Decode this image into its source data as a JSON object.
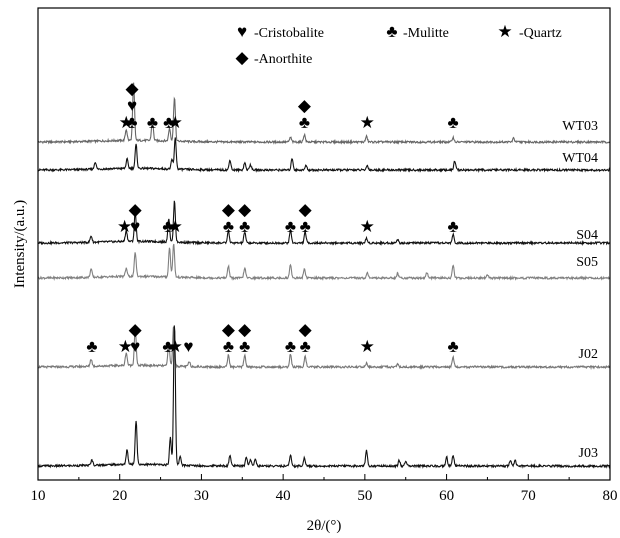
{
  "chart_data": {
    "type": "line",
    "xlabel": "2θ/(°)",
    "ylabel": "Intensity/(a.u.)",
    "xlim": [
      10,
      80
    ],
    "xticks": [
      "10",
      "20",
      "30",
      "40",
      "50",
      "60",
      "70",
      "80"
    ],
    "yticks_shown": false,
    "legend": [
      {
        "symbol": "♥",
        "icon": "heart-icon",
        "label": "-Cristobalite"
      },
      {
        "symbol": "♣",
        "icon": "club-icon",
        "label": "-Mulitte"
      },
      {
        "symbol": "★",
        "icon": "star-icon",
        "label": "-Quartz"
      },
      {
        "symbol": "◆",
        "icon": "diamond-icon",
        "label": "-Anorthite"
      }
    ],
    "series": [
      {
        "name": "WT03",
        "color": "#666666",
        "peaks": [
          [
            20.8,
            0.12
          ],
          [
            21.7,
            0.62
          ],
          [
            24.0,
            0.22
          ],
          [
            26.1,
            0.14
          ],
          [
            26.7,
            0.48
          ],
          [
            40.9,
            0.05
          ],
          [
            42.6,
            0.08
          ],
          [
            50.2,
            0.06
          ],
          [
            60.8,
            0.05
          ],
          [
            68.2,
            0.04
          ]
        ]
      },
      {
        "name": "WT04",
        "color": "#111111",
        "peaks": [
          [
            17.0,
            0.08
          ],
          [
            20.9,
            0.1
          ],
          [
            22.0,
            0.26
          ],
          [
            26.4,
            0.1
          ],
          [
            26.8,
            0.34
          ],
          [
            33.5,
            0.11
          ],
          [
            35.3,
            0.08
          ],
          [
            36.0,
            0.06
          ],
          [
            41.1,
            0.13
          ],
          [
            42.8,
            0.05
          ],
          [
            50.3,
            0.05
          ],
          [
            61.0,
            0.1
          ]
        ]
      },
      {
        "name": "S04",
        "color": "#111111",
        "peaks": [
          [
            16.5,
            0.07
          ],
          [
            20.8,
            0.12
          ],
          [
            21.9,
            0.32
          ],
          [
            26.0,
            0.26
          ],
          [
            26.7,
            0.45
          ],
          [
            33.3,
            0.13
          ],
          [
            35.3,
            0.12
          ],
          [
            40.9,
            0.14
          ],
          [
            42.7,
            0.12
          ],
          [
            50.2,
            0.05
          ],
          [
            54.0,
            0.04
          ],
          [
            60.8,
            0.09
          ]
        ]
      },
      {
        "name": "S05",
        "color": "#808080",
        "peaks": [
          [
            16.5,
            0.09
          ],
          [
            20.8,
            0.09
          ],
          [
            21.9,
            0.26
          ],
          [
            26.1,
            0.32
          ],
          [
            26.6,
            0.36
          ],
          [
            33.3,
            0.13
          ],
          [
            35.3,
            0.11
          ],
          [
            40.9,
            0.15
          ],
          [
            42.6,
            0.1
          ],
          [
            50.3,
            0.06
          ],
          [
            54.0,
            0.05
          ],
          [
            57.6,
            0.06
          ],
          [
            60.8,
            0.14
          ],
          [
            65.0,
            0.04
          ]
        ]
      },
      {
        "name": "J02",
        "color": "#777777",
        "peaks": [
          [
            16.5,
            0.08
          ],
          [
            20.8,
            0.14
          ],
          [
            21.9,
            0.4
          ],
          [
            26.0,
            0.24
          ],
          [
            26.6,
            0.44
          ],
          [
            28.5,
            0.05
          ],
          [
            33.3,
            0.13
          ],
          [
            35.3,
            0.13
          ],
          [
            40.9,
            0.14
          ],
          [
            42.7,
            0.12
          ],
          [
            50.2,
            0.04
          ],
          [
            54.0,
            0.03
          ],
          [
            60.8,
            0.11
          ]
        ]
      },
      {
        "name": "J03",
        "color": "#111111",
        "peaks": [
          [
            16.6,
            0.06
          ],
          [
            20.9,
            0.16
          ],
          [
            22.0,
            0.48
          ],
          [
            26.2,
            0.3
          ],
          [
            26.7,
            1.55
          ],
          [
            27.4,
            0.1
          ],
          [
            33.5,
            0.12
          ],
          [
            35.5,
            0.1
          ],
          [
            36.0,
            0.07
          ],
          [
            36.6,
            0.08
          ],
          [
            40.9,
            0.12
          ],
          [
            42.6,
            0.09
          ],
          [
            50.2,
            0.17
          ],
          [
            54.2,
            0.06
          ],
          [
            55.0,
            0.05
          ],
          [
            60.0,
            0.1
          ],
          [
            60.8,
            0.12
          ],
          [
            67.8,
            0.06
          ],
          [
            68.4,
            0.06
          ]
        ]
      }
    ],
    "markers": [
      {
        "series": "WT03",
        "x": 21.5,
        "stack": [
          "♣",
          "♥",
          "◆"
        ]
      },
      {
        "series": "WT03",
        "x": 20.8,
        "stack": [
          "★"
        ]
      },
      {
        "series": "WT03",
        "x": 24.0,
        "stack": [
          "♣"
        ]
      },
      {
        "series": "WT03",
        "x": 26.0,
        "stack": [
          "♣"
        ]
      },
      {
        "series": "WT03",
        "x": 26.8,
        "stack": [
          "★"
        ]
      },
      {
        "series": "WT03",
        "x": 42.6,
        "stack": [
          "♣",
          "◆"
        ]
      },
      {
        "series": "WT03",
        "x": 50.3,
        "stack": [
          "★"
        ]
      },
      {
        "series": "WT03",
        "x": 60.8,
        "stack": [
          "♣"
        ]
      },
      {
        "series": "S04",
        "x": 21.9,
        "stack": [
          "♥",
          "◆"
        ]
      },
      {
        "series": "S04",
        "x": 20.6,
        "stack": [
          "★"
        ]
      },
      {
        "series": "S04",
        "x": 25.9,
        "stack": [
          "♣"
        ]
      },
      {
        "series": "S04",
        "x": 26.8,
        "stack": [
          "★"
        ]
      },
      {
        "series": "S04",
        "x": 33.3,
        "stack": [
          "♣",
          "◆"
        ]
      },
      {
        "series": "S04",
        "x": 35.3,
        "stack": [
          "♣",
          "◆"
        ]
      },
      {
        "series": "S04",
        "x": 40.9,
        "stack": [
          "♣"
        ]
      },
      {
        "series": "S04",
        "x": 42.7,
        "stack": [
          "♣",
          "◆"
        ]
      },
      {
        "series": "S04",
        "x": 50.3,
        "stack": [
          "★"
        ]
      },
      {
        "series": "S04",
        "x": 60.8,
        "stack": [
          "♣"
        ]
      },
      {
        "series": "J02",
        "x": 16.6,
        "stack": [
          "♣"
        ]
      },
      {
        "series": "J02",
        "x": 20.7,
        "stack": [
          "★"
        ]
      },
      {
        "series": "J02",
        "x": 21.9,
        "stack": [
          "♥",
          "◆"
        ]
      },
      {
        "series": "J02",
        "x": 25.9,
        "stack": [
          "♣"
        ]
      },
      {
        "series": "J02",
        "x": 26.8,
        "stack": [
          "★"
        ]
      },
      {
        "series": "J02",
        "x": 28.4,
        "stack": [
          "♥"
        ]
      },
      {
        "series": "J02",
        "x": 33.3,
        "stack": [
          "♣",
          "◆"
        ]
      },
      {
        "series": "J02",
        "x": 35.3,
        "stack": [
          "♣",
          "◆"
        ]
      },
      {
        "series": "J02",
        "x": 40.9,
        "stack": [
          "♣"
        ]
      },
      {
        "series": "J02",
        "x": 42.7,
        "stack": [
          "♣",
          "◆"
        ]
      },
      {
        "series": "J02",
        "x": 50.3,
        "stack": [
          "★"
        ]
      },
      {
        "series": "J02",
        "x": 60.8,
        "stack": [
          "♣"
        ]
      }
    ]
  }
}
